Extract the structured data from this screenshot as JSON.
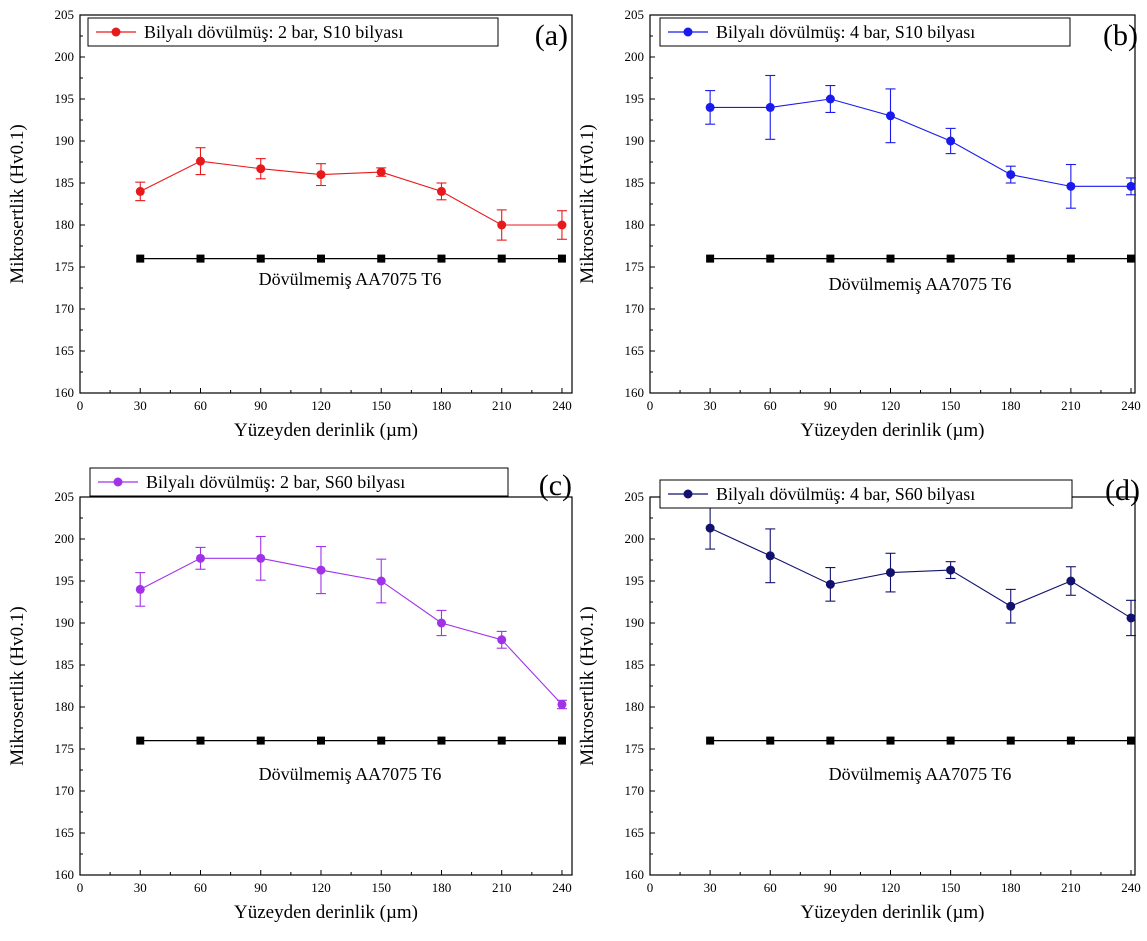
{
  "colors": {
    "red": "#e8191b",
    "blue": "#1a1aee",
    "purple": "#a033e8",
    "navy": "#12126e",
    "reference": "#000000"
  },
  "chart_data": [
    {
      "panel": "(a)",
      "type": "line",
      "xlabel": "Yüzeyden derinlik (µm)",
      "ylabel": "Mikrosertlik (Hv0.1)",
      "xlim": [
        0,
        245
      ],
      "ylim": [
        160,
        205
      ],
      "x_ticks": [
        0,
        30,
        60,
        90,
        120,
        150,
        180,
        210,
        240
      ],
      "y_ticks": [
        160,
        165,
        170,
        175,
        180,
        185,
        190,
        195,
        200,
        205
      ],
      "legend_position": "top-left",
      "series": [
        {
          "name": "Bilyalı dövülmüş: 2 bar, S10 bilyası",
          "color": "#e8191b",
          "x": [
            30,
            60,
            90,
            120,
            150,
            180,
            210,
            240
          ],
          "y": [
            184,
            187.6,
            186.7,
            186,
            186.3,
            184,
            180,
            180
          ],
          "error": [
            1.1,
            1.6,
            1.2,
            1.3,
            0.5,
            1.0,
            1.8,
            1.7
          ]
        }
      ],
      "reference": {
        "label": "Dövülmemiş AA7075 T6",
        "x": [
          30,
          60,
          90,
          120,
          150,
          180,
          210,
          240
        ],
        "y": [
          176,
          176,
          176,
          176,
          176,
          176,
          176,
          176
        ]
      }
    },
    {
      "panel": "(b)",
      "type": "line",
      "xlabel": "Yüzeyden derinlik (µm)",
      "ylabel": "Mikrosertlik (Hv0.1)",
      "xlim": [
        0,
        242
      ],
      "ylim": [
        160,
        205
      ],
      "x_ticks": [
        0,
        30,
        60,
        90,
        120,
        150,
        180,
        210,
        240
      ],
      "y_ticks": [
        160,
        165,
        170,
        175,
        180,
        185,
        190,
        195,
        200,
        205
      ],
      "legend_position": "top-left",
      "series": [
        {
          "name": "Bilyalı dövülmüş: 4 bar, S10 bilyası",
          "color": "#1a1aee",
          "x": [
            30,
            60,
            90,
            120,
            150,
            180,
            210,
            240
          ],
          "y": [
            194,
            194,
            195,
            193,
            190,
            186,
            184.6,
            184.6
          ],
          "error": [
            2.0,
            3.8,
            1.6,
            3.2,
            1.5,
            1.0,
            2.6,
            1.0
          ]
        }
      ],
      "reference": {
        "label": "Dövülmemiş AA7075 T6",
        "x": [
          30,
          60,
          90,
          120,
          150,
          180,
          210,
          240
        ],
        "y": [
          176,
          176,
          176,
          176,
          176,
          176,
          176,
          176
        ]
      }
    },
    {
      "panel": "(c)",
      "type": "line",
      "xlabel": "Yüzeyden derinlik (µm)",
      "ylabel": "Mikrosertlik (Hv0.1)",
      "xlim": [
        0,
        245
      ],
      "ylim": [
        160,
        205
      ],
      "x_ticks": [
        0,
        30,
        60,
        90,
        120,
        150,
        180,
        210,
        240
      ],
      "y_ticks": [
        160,
        165,
        170,
        175,
        180,
        185,
        190,
        195,
        200,
        205
      ],
      "legend_position": "top-left",
      "series": [
        {
          "name": "Bilyalı dövülmüş: 2 bar, S60 bilyası",
          "color": "#a033e8",
          "x": [
            30,
            60,
            90,
            120,
            150,
            180,
            210,
            240
          ],
          "y": [
            194,
            197.7,
            197.7,
            196.3,
            195,
            190,
            188,
            180.3
          ],
          "error": [
            2.0,
            1.3,
            2.6,
            2.8,
            2.6,
            1.5,
            1.0,
            0.5
          ]
        }
      ],
      "reference": {
        "label": "Dövülmemiş AA7075 T6",
        "x": [
          30,
          60,
          90,
          120,
          150,
          180,
          210,
          240
        ],
        "y": [
          176,
          176,
          176,
          176,
          176,
          176,
          176,
          176
        ]
      }
    },
    {
      "panel": "(d)",
      "type": "line",
      "xlabel": "Yüzeyden derinlik (µm)",
      "ylabel": "Mikrosertlik (Hv0.1)",
      "xlim": [
        0,
        242
      ],
      "ylim": [
        160,
        205
      ],
      "x_ticks": [
        0,
        30,
        60,
        90,
        120,
        150,
        180,
        210,
        240
      ],
      "y_ticks": [
        160,
        165,
        170,
        175,
        180,
        185,
        190,
        195,
        200,
        205
      ],
      "legend_position": "top-left",
      "series": [
        {
          "name": "Bilyalı dövülmüş: 4 bar, S60 bilyası",
          "color": "#12126e",
          "x": [
            30,
            60,
            90,
            120,
            150,
            180,
            210,
            240
          ],
          "y": [
            201.3,
            198,
            194.6,
            196,
            196.3,
            192,
            195,
            190.6
          ],
          "error": [
            2.5,
            3.2,
            2.0,
            2.3,
            1.0,
            2.0,
            1.7,
            2.1
          ]
        }
      ],
      "reference": {
        "label": "Dövülmemiş AA7075 T6",
        "x": [
          30,
          60,
          90,
          120,
          150,
          180,
          210,
          240
        ],
        "y": [
          176,
          176,
          176,
          176,
          176,
          176,
          176,
          176
        ]
      }
    }
  ]
}
